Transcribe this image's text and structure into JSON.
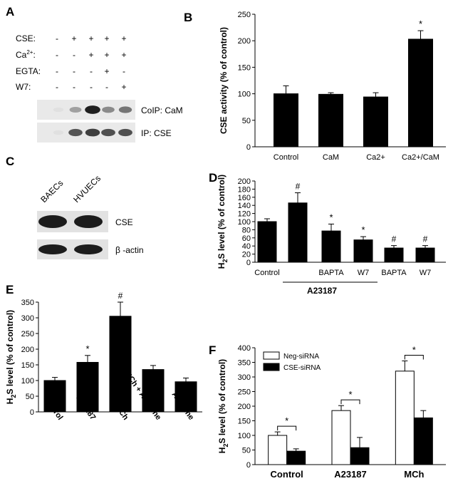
{
  "panels": {
    "A": {
      "letter": "A",
      "row_labels": [
        "CSE:",
        "Ca",
        "EGTA:",
        "W7:"
      ],
      "ca_superscript": "2+",
      "ca_suffix": ":",
      "matrix": [
        [
          "-",
          "+",
          "+",
          "+",
          "+"
        ],
        [
          "-",
          "-",
          "+",
          "+",
          "+"
        ],
        [
          "-",
          "-",
          "-",
          "+",
          "-"
        ],
        [
          "-",
          "-",
          "-",
          "-",
          "+"
        ]
      ],
      "blot_labels": [
        "CoIP: CaM",
        "IP: CSE"
      ],
      "coip_intensity": [
        0.05,
        0.35,
        0.95,
        0.45,
        0.55
      ],
      "ip_intensity": [
        0.05,
        0.7,
        0.8,
        0.72,
        0.72
      ]
    },
    "C": {
      "letter": "C",
      "lane_labels": [
        "BAECs",
        "HVUECs"
      ],
      "blot_labels": [
        "CSE",
        "β -actin"
      ]
    },
    "B": {
      "letter": "B"
    },
    "D": {
      "letter": "D",
      "group_label": "A23187"
    },
    "E": {
      "letter": "E"
    },
    "F": {
      "letter": "F"
    }
  },
  "chart_data": [
    {
      "id": "B",
      "type": "bar",
      "ylabel": "CSE activity (% of control)",
      "categories": [
        "Control",
        "CaM",
        "Ca2+",
        "Ca2+/CaM"
      ],
      "values": [
        100,
        99,
        94,
        203
      ],
      "errors": [
        15,
        3,
        8,
        16
      ],
      "annotations": [
        "",
        "",
        "",
        "*"
      ],
      "ylim": [
        0,
        250
      ],
      "yticks": [
        "0",
        "50",
        "100",
        "150",
        "200",
        "250"
      ],
      "bar_color": "#000000"
    },
    {
      "id": "D",
      "type": "bar",
      "ylabel": "H2S level (% of control)",
      "ylabel_parts": [
        "H",
        "2",
        "S level (% of control)"
      ],
      "categories": [
        "Control",
        "",
        "BAPTA",
        "W7",
        "BAPTA",
        "W7"
      ],
      "values": [
        100,
        146,
        77,
        55,
        35,
        35
      ],
      "errors": [
        7,
        25,
        17,
        8,
        6,
        6
      ],
      "annotations": [
        "",
        "#",
        "*",
        "*",
        "#",
        "#"
      ],
      "ylim": [
        0,
        200
      ],
      "yticks": [
        "0",
        "20",
        "40",
        "60",
        "80",
        "100",
        "120",
        "140",
        "160",
        "180",
        "200"
      ],
      "bar_color": "#000000"
    },
    {
      "id": "E",
      "type": "bar",
      "ylabel": "H2S level (% of control)",
      "ylabel_parts": [
        "H",
        "2",
        "S level (% of control)"
      ],
      "categories": [
        "Control",
        "A23187",
        "MCh",
        "MCh + Atropine",
        "Atropine"
      ],
      "values": [
        100,
        158,
        305,
        135,
        96
      ],
      "errors": [
        10,
        22,
        45,
        13,
        12
      ],
      "annotations": [
        "",
        "*",
        "#",
        "",
        ""
      ],
      "ylim": [
        0,
        350
      ],
      "yticks": [
        "0",
        "50",
        "100",
        "150",
        "200",
        "250",
        "300",
        "350"
      ],
      "bar_color": "#000000"
    },
    {
      "id": "F",
      "type": "bar",
      "ylabel": "H2S level (% of control)",
      "ylabel_parts": [
        "H",
        "2",
        "S level (% of control)"
      ],
      "categories": [
        "Control",
        "A23187",
        "MCh"
      ],
      "series": [
        {
          "name": "Neg-siRNA",
          "values": [
            100,
            185,
            320
          ],
          "errors": [
            12,
            17,
            35
          ],
          "color": "#ffffff"
        },
        {
          "name": "CSE-siRNA",
          "values": [
            46,
            58,
            160
          ],
          "errors": [
            8,
            35,
            25
          ],
          "color": "#000000"
        }
      ],
      "annotations": [
        "*",
        "*",
        "*"
      ],
      "ylim": [
        0,
        400
      ],
      "yticks": [
        "0",
        "50",
        "100",
        "150",
        "200",
        "250",
        "300",
        "350",
        "400"
      ],
      "legend": "top-left"
    }
  ]
}
